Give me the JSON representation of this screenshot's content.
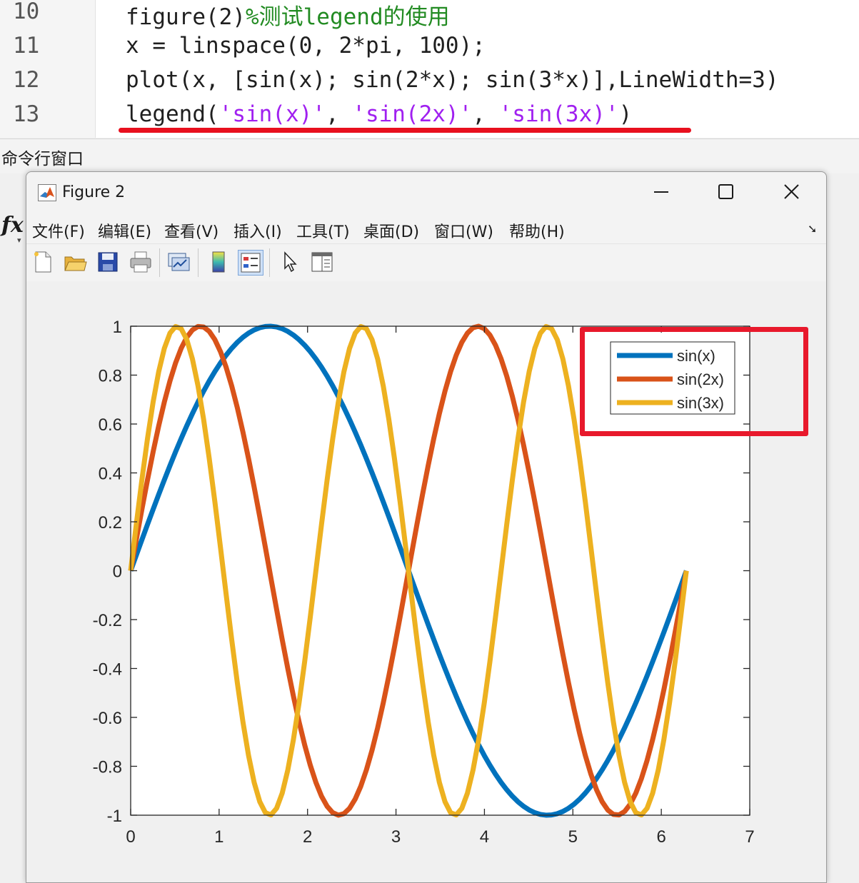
{
  "editor": {
    "lines": [
      {
        "number": "10",
        "code": "figure(2)",
        "comment": "%测试legend的使用"
      },
      {
        "number": "11",
        "code": "x = linspace(0, 2*pi, 100);"
      },
      {
        "number": "12",
        "code": "plot(x, [sin(x); sin(2*x); sin(3*x)],LineWidth=3)"
      },
      {
        "number": "13",
        "pre": "legend(",
        "s1": "'sin(x)'",
        "sep1": ", ",
        "s2": "'sin(2x)'",
        "sep2": ", ",
        "s3": "'sin(3x)'",
        "post": ")"
      }
    ]
  },
  "command_window": {
    "title": "命令行窗口",
    "fx": "fx"
  },
  "figure": {
    "title": "Figure 2",
    "menu": [
      "文件(F)",
      "编辑(E)",
      "查看(V)",
      "插入(I)",
      "工具(T)",
      "桌面(D)",
      "窗口(W)",
      "帮助(H)"
    ],
    "toolbar_icons": [
      "new-figure-icon",
      "open-file-icon",
      "save-icon",
      "print-icon",
      "link-plot-icon",
      "colorbar-icon",
      "legend-icon",
      "pointer-icon",
      "property-inspector-icon"
    ]
  },
  "colors": {
    "blue": "#0072BD",
    "orange": "#D95319",
    "yellow": "#EDB120",
    "highlight": "#E8192C"
  },
  "chart_data": {
    "type": "line",
    "x_function": "linspace(0, 2*pi, 100)",
    "series": [
      {
        "name": "sin(x)",
        "freq": 1,
        "color": "#0072BD"
      },
      {
        "name": "sin(2x)",
        "freq": 2,
        "color": "#D95319"
      },
      {
        "name": "sin(3x)",
        "freq": 3,
        "color": "#EDB120"
      }
    ],
    "x_range": [
      0,
      6.283
    ],
    "xlim": [
      0,
      7
    ],
    "ylim": [
      -1,
      1
    ],
    "xticks": [
      "0",
      "1",
      "2",
      "3",
      "4",
      "5",
      "6",
      "7"
    ],
    "yticks": [
      "1",
      "0.8",
      "0.6",
      "0.4",
      "0.2",
      "0",
      "-0.2",
      "-0.4",
      "-0.6",
      "-0.8",
      "-1"
    ],
    "legend_position": "top-right",
    "grid": false
  }
}
